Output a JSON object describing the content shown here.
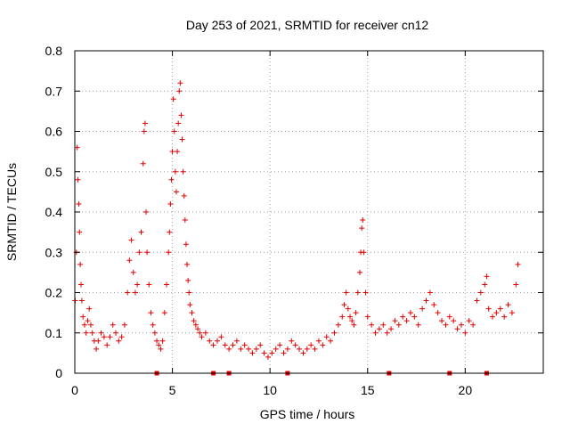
{
  "chart_data": {
    "type": "scatter",
    "title": "Day 253 of 2021, SRMTID for receiver cn12",
    "xlabel": "GPS time / hours",
    "ylabel": "SRMTID / TECUs",
    "xlim": [
      0,
      24
    ],
    "ylim": [
      0,
      0.8
    ],
    "xticks": [
      0,
      5,
      10,
      15,
      20
    ],
    "yticks": [
      0,
      0.1,
      0.2,
      0.3,
      0.4,
      0.5,
      0.6,
      0.7,
      0.8
    ],
    "xtick_labels": [
      "0",
      "5",
      "10",
      "15",
      "20"
    ],
    "ytick_labels": [
      "0",
      "0.1",
      "0.2",
      "0.3",
      "0.4",
      "0.5",
      "0.6",
      "0.7",
      "0.8"
    ],
    "grid": true,
    "marker": "plus",
    "marker_color": "#e00000",
    "series": [
      {
        "name": "SRMTID",
        "x": [
          0.02,
          0.08,
          0.12,
          0.16,
          0.2,
          0.24,
          0.28,
          0.32,
          0.36,
          0.42,
          0.5,
          0.58,
          0.66,
          0.74,
          0.82,
          0.9,
          1.0,
          1.1,
          1.2,
          1.35,
          1.5,
          1.65,
          1.8,
          1.95,
          2.1,
          2.25,
          2.4,
          2.55,
          2.7,
          2.8,
          2.9,
          3.0,
          3.1,
          3.2,
          3.3,
          3.4,
          3.5,
          3.55,
          3.6,
          3.65,
          3.7,
          3.8,
          3.9,
          4.0,
          4.1,
          4.2,
          4.3,
          4.4,
          4.5,
          4.6,
          4.7,
          4.8,
          4.85,
          4.9,
          4.95,
          5.0,
          5.05,
          5.1,
          5.15,
          5.2,
          5.25,
          5.3,
          5.35,
          5.4,
          5.45,
          5.5,
          5.55,
          5.6,
          5.65,
          5.7,
          5.75,
          5.8,
          5.85,
          5.9,
          6.0,
          6.1,
          6.2,
          6.3,
          6.4,
          6.5,
          6.7,
          6.9,
          7.1,
          7.3,
          7.5,
          7.7,
          7.9,
          8.1,
          8.3,
          8.5,
          8.7,
          8.9,
          9.1,
          9.3,
          9.5,
          9.7,
          9.9,
          10.1,
          10.3,
          10.5,
          10.7,
          10.9,
          11.1,
          11.3,
          11.5,
          11.7,
          11.9,
          12.1,
          12.3,
          12.5,
          12.7,
          12.9,
          13.1,
          13.3,
          13.5,
          13.7,
          13.8,
          13.9,
          14.0,
          14.1,
          14.2,
          14.3,
          14.4,
          14.5,
          14.6,
          14.65,
          14.7,
          14.75,
          14.8,
          14.9,
          15.0,
          15.2,
          15.4,
          15.6,
          15.8,
          16.0,
          16.2,
          16.4,
          16.6,
          16.8,
          17.0,
          17.2,
          17.4,
          17.6,
          17.8,
          18.0,
          18.2,
          18.4,
          18.6,
          18.8,
          19.0,
          19.2,
          19.4,
          19.6,
          19.8,
          20.0,
          20.2,
          20.4,
          20.6,
          20.8,
          21.0,
          21.1,
          21.2,
          21.4,
          21.6,
          21.8,
          22.0,
          22.2,
          22.4,
          22.6,
          22.7
        ],
        "y": [
          0.18,
          0.3,
          0.56,
          0.48,
          0.42,
          0.35,
          0.27,
          0.22,
          0.18,
          0.14,
          0.12,
          0.1,
          0.13,
          0.16,
          0.12,
          0.1,
          0.08,
          0.06,
          0.08,
          0.1,
          0.09,
          0.07,
          0.09,
          0.12,
          0.1,
          0.08,
          0.09,
          0.12,
          0.2,
          0.28,
          0.33,
          0.25,
          0.2,
          0.22,
          0.3,
          0.35,
          0.52,
          0.6,
          0.62,
          0.4,
          0.3,
          0.22,
          0.15,
          0.12,
          0.1,
          0.08,
          0.07,
          0.06,
          0.08,
          0.15,
          0.22,
          0.3,
          0.35,
          0.42,
          0.48,
          0.55,
          0.68,
          0.6,
          0.5,
          0.45,
          0.55,
          0.62,
          0.7,
          0.72,
          0.64,
          0.58,
          0.5,
          0.44,
          0.38,
          0.32,
          0.27,
          0.23,
          0.2,
          0.17,
          0.15,
          0.13,
          0.12,
          0.11,
          0.1,
          0.09,
          0.1,
          0.08,
          0.07,
          0.08,
          0.09,
          0.07,
          0.06,
          0.07,
          0.08,
          0.06,
          0.07,
          0.06,
          0.05,
          0.06,
          0.07,
          0.05,
          0.04,
          0.05,
          0.06,
          0.07,
          0.05,
          0.06,
          0.08,
          0.07,
          0.06,
          0.05,
          0.06,
          0.07,
          0.06,
          0.08,
          0.07,
          0.09,
          0.08,
          0.1,
          0.12,
          0.14,
          0.17,
          0.2,
          0.16,
          0.14,
          0.13,
          0.12,
          0.15,
          0.2,
          0.25,
          0.3,
          0.36,
          0.38,
          0.3,
          0.2,
          0.14,
          0.12,
          0.1,
          0.11,
          0.12,
          0.1,
          0.11,
          0.13,
          0.12,
          0.14,
          0.13,
          0.15,
          0.14,
          0.12,
          0.16,
          0.18,
          0.2,
          0.17,
          0.15,
          0.13,
          0.12,
          0.14,
          0.13,
          0.11,
          0.12,
          0.1,
          0.13,
          0.12,
          0.18,
          0.2,
          0.22,
          0.24,
          0.16,
          0.14,
          0.15,
          0.16,
          0.14,
          0.17,
          0.15,
          0.22,
          0.27
        ]
      }
    ],
    "gap_markers_x": [
      4.2,
      7.1,
      7.9,
      10.9,
      16.1,
      19.2,
      21.1
    ]
  }
}
